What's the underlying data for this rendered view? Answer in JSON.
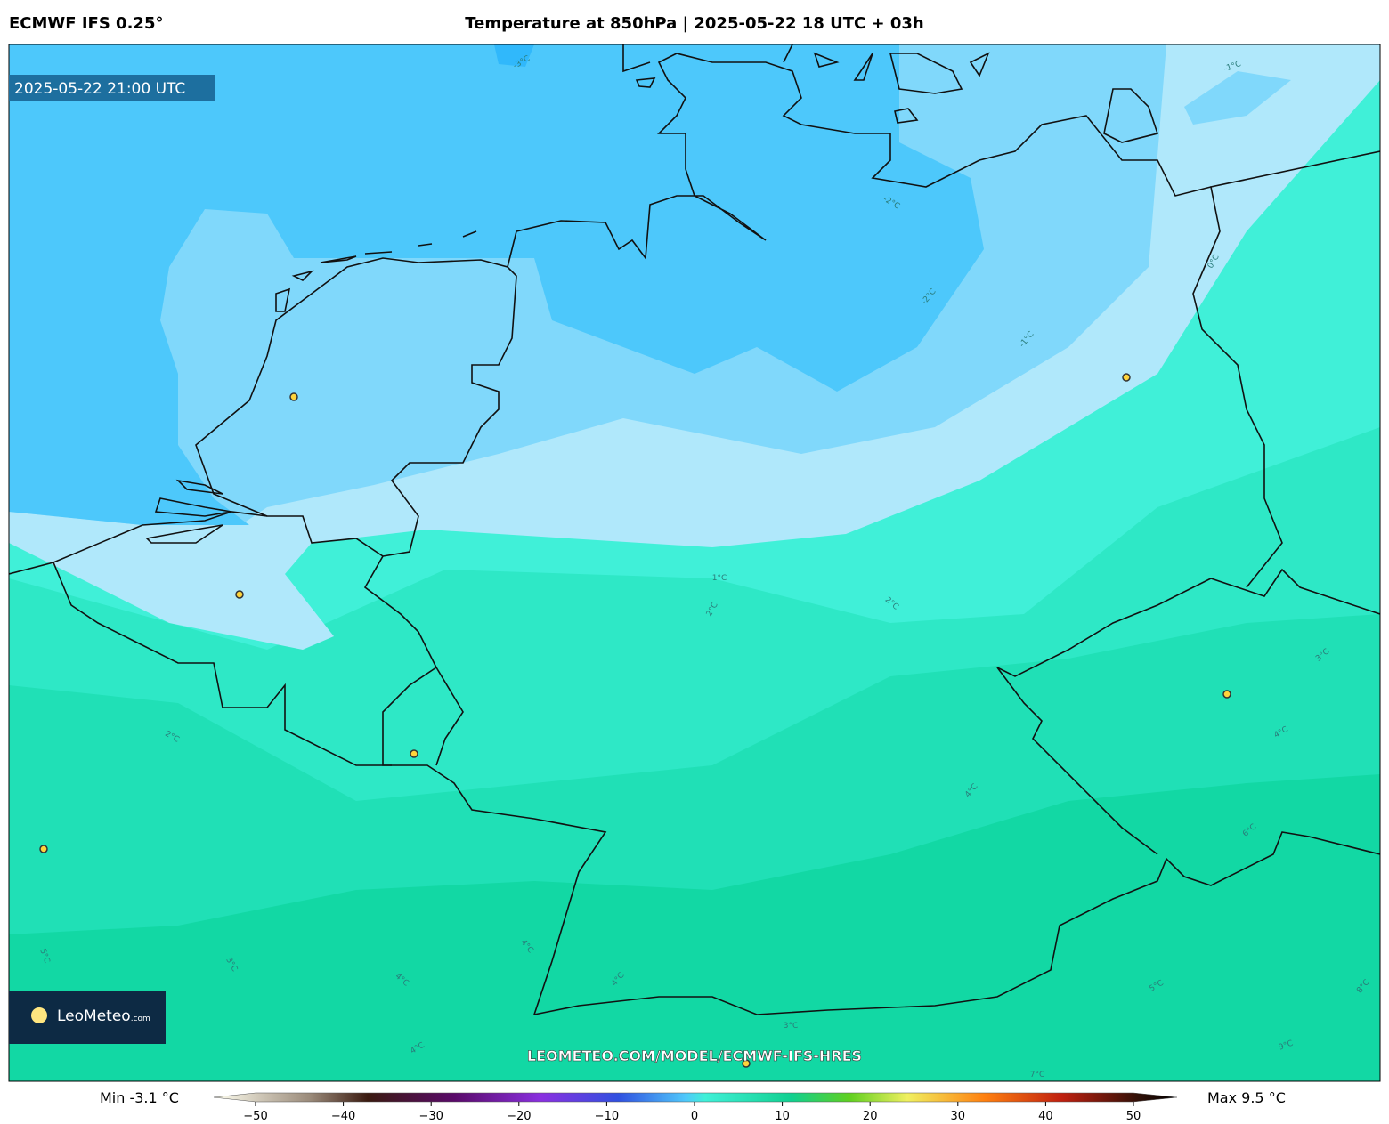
{
  "header": {
    "model": "ECMWF IFS 0.25°",
    "title": "Temperature at 850hPa | 2025-05-22 18 UTC + 03h"
  },
  "map": {
    "valid_time": "2025-05-22 21:00 UTC",
    "contour_labels": [
      "-3°C",
      "-2°C",
      "-2°C",
      "-1°C",
      "-1°C",
      "0°C",
      "1°C",
      "2°C",
      "2°C",
      "2°C",
      "3°C",
      "3°C",
      "3°C",
      "4°C",
      "4°C",
      "4°C",
      "4°C",
      "4°C",
      "4°C",
      "5°C",
      "5°C",
      "6°C",
      "7°C",
      "8°C",
      "9°C"
    ],
    "watermark": "LEOMETEO.COM/MODEL/ECMWF-IFS-HRES",
    "logo": {
      "name": "LeoMeteo",
      "suffix": ".com"
    }
  },
  "colorbar": {
    "min_label": "Min -3.1 °C",
    "max_label": "Max 9.5 °C",
    "lim": [
      -50,
      50
    ],
    "ticks": [
      {
        "value": -50,
        "label": "−50"
      },
      {
        "value": -40,
        "label": "−40"
      },
      {
        "value": -30,
        "label": "−30"
      },
      {
        "value": -20,
        "label": "−20"
      },
      {
        "value": -10,
        "label": "−10"
      },
      0,
      10,
      20,
      30,
      40,
      50
    ]
  }
}
